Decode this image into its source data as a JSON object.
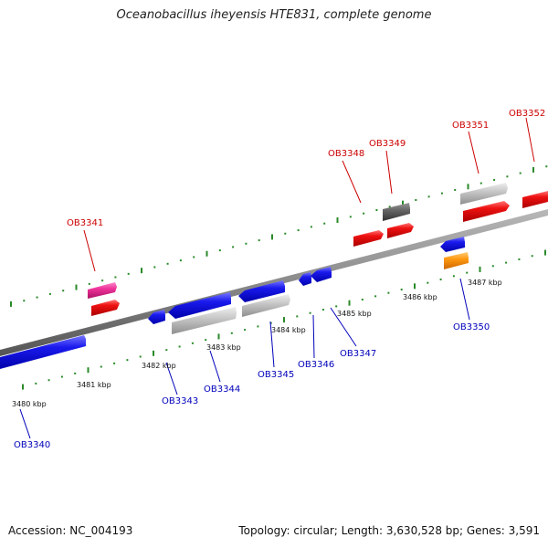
{
  "title": "Oceanobacillus iheyensis HTE831, complete genome",
  "footer": {
    "accession": "Accession: NC_004193",
    "summary": "Topology: circular; Length: 3,630,528 bp; Genes: 3,591"
  },
  "colors": {
    "backbone": "#8a8a8a",
    "tick": "#2a8a2a",
    "forward_label": "#cc0000",
    "reverse_label": "#0000bb",
    "red": "#ee1111",
    "blue": "#1a1aee",
    "gray": "#c4c4c4",
    "pink": "#ee3399",
    "dark": "#606060",
    "orange": "#ff9911"
  },
  "scale_labels": [
    "3480 kbp",
    "3481 kbp",
    "3482 kbp",
    "3483 kbp",
    "3484 kbp",
    "3485 kbp",
    "3486 kbp",
    "3487 kbp"
  ],
  "gene_labels": {
    "forward": [
      "OB3341",
      "OB3348",
      "OB3349",
      "OB3351",
      "OB3352"
    ],
    "reverse": [
      "OB3340",
      "OB3343",
      "OB3344",
      "OB3345",
      "OB3346",
      "OB3347",
      "OB3350"
    ]
  }
}
